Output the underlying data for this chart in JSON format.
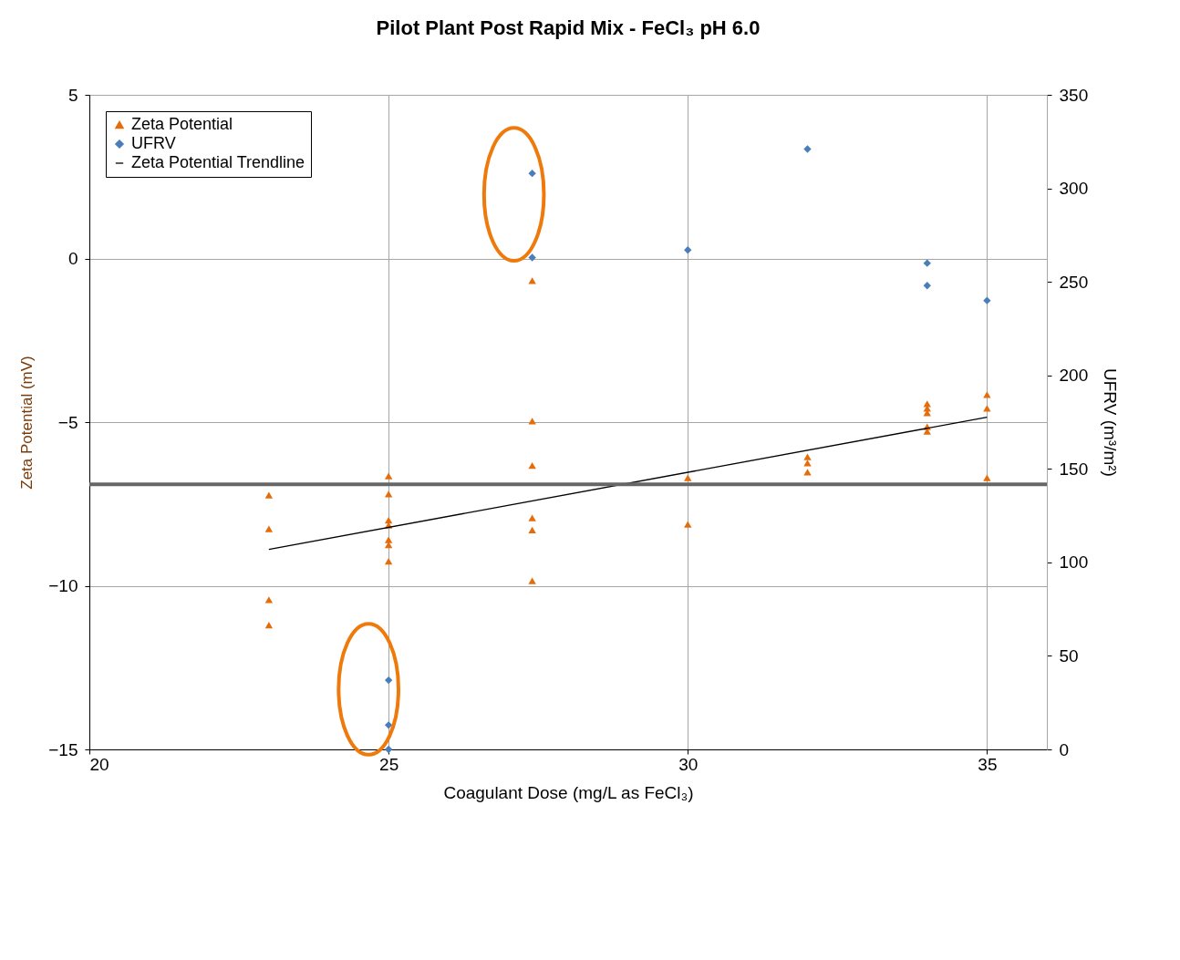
{
  "chart_data": {
    "type": "scatter",
    "title": "Pilot Plant Post Rapid Mix - FeCl₃ pH 6.0",
    "xlabel": "Coagulant Dose (mg/L as FeCl₃)",
    "ylabel": "Zeta Potential (mV)",
    "y2label": "UFRV (m³/m²)",
    "xlim": [
      20,
      36
    ],
    "xticks": [
      20,
      25,
      30,
      35
    ],
    "ylim": [
      -15,
      5
    ],
    "yticks": [
      -15,
      -10,
      -5,
      0,
      5
    ],
    "y2lim": [
      0,
      350
    ],
    "y2ticks": [
      0,
      50,
      100,
      150,
      200,
      250,
      300,
      350
    ],
    "grid": true,
    "legend": "top left",
    "series": [
      {
        "name": "Zeta Potential",
        "color": "#e46c0a",
        "marker": "triangle",
        "x": [
          23,
          23,
          23,
          23,
          25,
          25,
          25,
          25,
          25,
          25,
          25,
          27.4,
          27.4,
          27.4,
          27.4,
          27.4,
          27.4,
          30,
          30,
          32,
          32,
          32,
          34,
          34,
          34,
          34,
          34,
          35,
          35,
          35
        ],
        "values": [
          -7.23,
          -8.26,
          -10.43,
          -11.2,
          -6.65,
          -7.2,
          -8.0,
          -8.15,
          -8.6,
          -8.75,
          -9.25,
          -0.68,
          -4.97,
          -6.33,
          -7.93,
          -8.3,
          -9.85,
          -6.7,
          -8.12,
          -6.06,
          -6.25,
          -6.53,
          -4.44,
          -4.58,
          -4.72,
          -5.14,
          -5.28,
          -4.16,
          -4.58,
          -6.7
        ]
      },
      {
        "name": "UFRV",
        "color": "#4a7ebb",
        "marker": "diamond",
        "axis": "y2",
        "x": [
          25,
          25,
          25,
          27.4,
          27.4,
          30,
          32,
          34,
          34,
          35
        ],
        "values": [
          37,
          13,
          0,
          308,
          263,
          267,
          321,
          260,
          248,
          240
        ]
      },
      {
        "name": "Zeta Potential Trendline",
        "type": "line",
        "color": "#000000",
        "marker": "none",
        "line_style": "solid",
        "x": [
          23,
          35
        ],
        "values": [
          -8.89,
          -4.85
        ]
      }
    ],
    "ref_lines": [
      {
        "axis": "y",
        "value": -6.9,
        "color": "#666666"
      }
    ]
  }
}
